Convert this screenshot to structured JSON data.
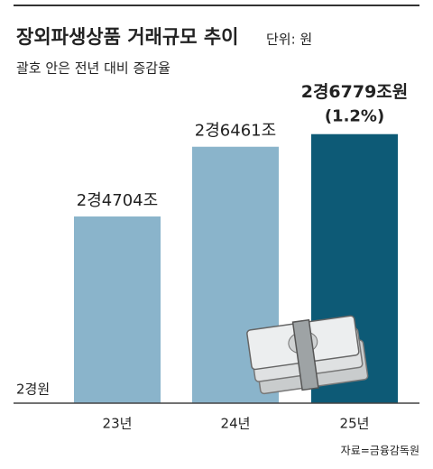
{
  "chart_data": {
    "type": "bar",
    "title": "장외파생상품 거래규모 추이",
    "unit": "단위: 원",
    "subtitle": "괄호 안은 전년 대비 증감율",
    "source": "자료=금융감독원",
    "categories": [
      "23년",
      "24년",
      "25년"
    ],
    "values": [
      24704,
      26461,
      26779
    ],
    "value_labels": [
      "2경4704조",
      "2경6461조",
      "2경6779조원"
    ],
    "annotation": "(1.2%)",
    "colors": [
      "#8ab4cb",
      "#8ab4cb",
      "#0d5a76"
    ],
    "ylim": [
      20000,
      27000
    ],
    "yticks": [
      {
        "value": 20000,
        "label": "2경원"
      }
    ]
  }
}
